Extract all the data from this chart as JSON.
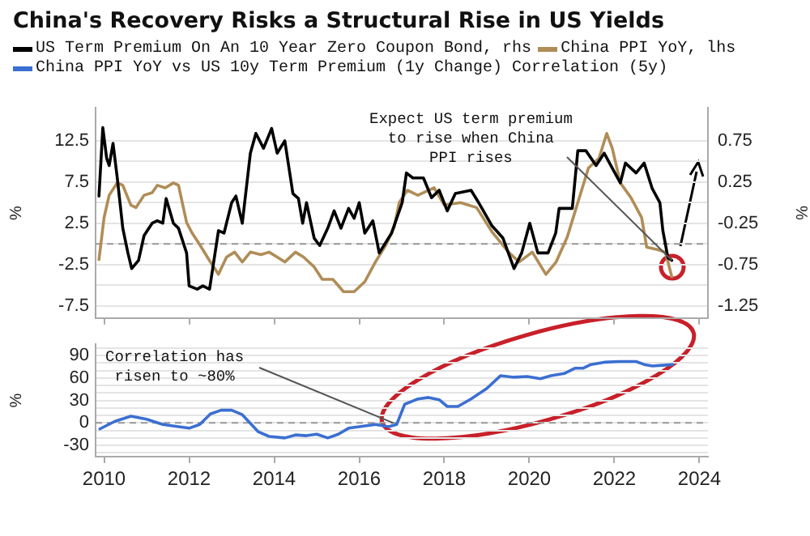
{
  "chart_data": [
    {
      "type": "line",
      "title": "China's Recovery Risks a Structural Rise in US Yields",
      "ylabel": "%",
      "y2label": "%",
      "xlim": [
        2009.8,
        2024.2
      ],
      "xticks": [
        2010,
        2012,
        2014,
        2016,
        2018,
        2020,
        2022,
        2024
      ],
      "ylim": [
        -9,
        16.5
      ],
      "yticks": [
        12.5,
        {
          "value": 10,
          "label": null
        },
        7.5,
        {
          "value": 5,
          "label": null
        },
        2.5,
        {
          "value": 0,
          "label": null
        },
        -2.5,
        {
          "value": -5,
          "label": null
        },
        -7.5
      ],
      "y2lim": [
        -1.4,
        1.15
      ],
      "y2ticks": [
        0.75,
        0.25,
        -0.25,
        -0.75,
        -1.25
      ],
      "tick_labels": "y",
      "grid": "y",
      "legend": "top left",
      "marker": "none",
      "ref_lines": [
        {
          "axis": "y",
          "value": 0,
          "line_style": "dashed",
          "color": "#999999"
        }
      ],
      "annotations": [
        {
          "text": "Expect US term premium\nto rise when China\nPPI rises",
          "x": 2023.35,
          "y": -2.0
        }
      ],
      "series": [
        {
          "name": "US Term Premium On An 10 Year Zero Coupon Bond, rhs",
          "color": "#000000",
          "axis": "y2",
          "x": [
            2009.88,
            2009.97,
            2010.06,
            2010.12,
            2010.21,
            2010.31,
            2010.44,
            2010.56,
            2010.65,
            2010.81,
            2010.94,
            2011.13,
            2011.25,
            2011.38,
            2011.46,
            2011.63,
            2011.75,
            2011.94,
            2012.0,
            2012.19,
            2012.32,
            2012.48,
            2012.69,
            2012.82,
            2013.0,
            2013.1,
            2013.25,
            2013.44,
            2013.57,
            2013.75,
            2013.94,
            2014.07,
            2014.25,
            2014.44,
            2014.57,
            2014.67,
            2014.76,
            2014.94,
            2015.07,
            2015.26,
            2015.41,
            2015.57,
            2015.75,
            2015.88,
            2016.0,
            2016.13,
            2016.32,
            2016.47,
            2016.76,
            2017.01,
            2017.11,
            2017.26,
            2017.51,
            2017.7,
            2017.88,
            2018.07,
            2018.26,
            2018.63,
            2018.82,
            2019.12,
            2019.38,
            2019.64,
            2019.82,
            2020.01,
            2020.2,
            2020.44,
            2020.62,
            2020.7,
            2021.01,
            2021.14,
            2021.33,
            2021.57,
            2021.76,
            2021.95,
            2022.14,
            2022.26,
            2022.51,
            2022.7,
            2022.89,
            2023.07,
            2023.14,
            2023.26,
            2023.35
          ],
          "values": [
            0.08,
            0.91,
            0.54,
            0.45,
            0.72,
            0.3,
            -0.31,
            -0.61,
            -0.8,
            -0.7,
            -0.4,
            -0.25,
            -0.22,
            -0.25,
            0.05,
            -0.25,
            -0.31,
            -0.61,
            -1.01,
            -1.05,
            -1.01,
            -1.05,
            -0.34,
            -0.37,
            0.0,
            0.08,
            -0.25,
            0.6,
            0.84,
            0.66,
            0.9,
            0.6,
            0.75,
            0.11,
            0.05,
            -0.25,
            0.0,
            -0.43,
            -0.52,
            -0.31,
            -0.1,
            -0.31,
            -0.07,
            -0.19,
            0.0,
            -0.37,
            -0.22,
            -0.61,
            -0.37,
            0.0,
            0.36,
            0.3,
            0.3,
            0.06,
            0.15,
            -0.1,
            0.11,
            0.15,
            -0.01,
            -0.28,
            -0.43,
            -0.8,
            -0.61,
            -0.25,
            -0.61,
            -0.61,
            -0.37,
            -0.07,
            -0.07,
            0.63,
            0.63,
            0.45,
            0.6,
            0.42,
            0.24,
            0.48,
            0.36,
            0.48,
            0.17,
            0.0,
            -0.34,
            -0.67,
            -0.7
          ]
        },
        {
          "name": "China PPI YoY, lhs",
          "color": "#b08d57",
          "axis": "y",
          "x": [
            2009.88,
            2010.0,
            2010.12,
            2010.31,
            2010.44,
            2010.63,
            2010.75,
            2010.94,
            2011.13,
            2011.25,
            2011.44,
            2011.63,
            2011.75,
            2011.94,
            2012.06,
            2012.25,
            2012.5,
            2012.69,
            2012.88,
            2013.07,
            2013.25,
            2013.44,
            2013.69,
            2013.88,
            2014.07,
            2014.25,
            2014.5,
            2014.69,
            2014.94,
            2015.13,
            2015.38,
            2015.63,
            2015.88,
            2016.13,
            2016.38,
            2016.63,
            2016.82,
            2016.94,
            2017.13,
            2017.38,
            2017.76,
            2018.0,
            2018.38,
            2018.76,
            2019.13,
            2019.51,
            2019.76,
            2020.07,
            2020.39,
            2020.63,
            2020.89,
            2021.14,
            2021.39,
            2021.64,
            2021.82,
            2021.95,
            2022.14,
            2022.39,
            2022.64,
            2022.76,
            2023.01,
            2023.2,
            2023.35
          ],
          "values": [
            -1.9,
            3.2,
            5.9,
            7.4,
            7.1,
            4.7,
            4.4,
            5.9,
            6.2,
            7.1,
            6.8,
            7.4,
            7.1,
            2.6,
            1.4,
            -0.1,
            -2.2,
            -3.7,
            -1.6,
            -1.0,
            -2.2,
            -1.0,
            -1.3,
            -1.0,
            -1.6,
            -2.2,
            -1.0,
            -1.6,
            -2.8,
            -4.3,
            -4.3,
            -5.8,
            -5.8,
            -4.6,
            -2.2,
            -0.1,
            2.0,
            5.0,
            6.5,
            5.9,
            6.8,
            4.7,
            5.0,
            4.4,
            1.4,
            -1.0,
            -2.2,
            -1.0,
            -3.7,
            -2.2,
            0.8,
            5.0,
            9.2,
            10.4,
            13.4,
            11.6,
            7.4,
            5.6,
            3.2,
            -0.4,
            -0.7,
            -1.0,
            -4.0
          ]
        }
      ]
    },
    {
      "type": "line",
      "ylabel": "%",
      "xlim": [
        2009.8,
        2024.2
      ],
      "xticks": [
        2010,
        2012,
        2014,
        2016,
        2018,
        2020,
        2022,
        2024
      ],
      "ylim": [
        -45,
        105
      ],
      "yticks": [
        {
          "value": -40,
          "label": null
        },
        -30,
        {
          "value": -20,
          "label": null
        },
        {
          "value": -10,
          "label": null
        },
        0,
        {
          "value": 10,
          "label": null
        },
        {
          "value": 20,
          "label": null
        },
        30,
        {
          "value": 40,
          "label": null
        },
        {
          "value": 50,
          "label": null
        },
        60,
        {
          "value": 70,
          "label": null
        },
        {
          "value": 80,
          "label": null
        },
        90,
        {
          "value": 100,
          "label": null
        }
      ],
      "grid": "y",
      "legend": "top left",
      "marker": "none",
      "ref_lines": [
        {
          "axis": "y",
          "value": 0,
          "line_style": "dashed",
          "color": "#999999"
        }
      ],
      "annotations": [
        {
          "text": "Correlation has\nrisen to ~80%",
          "x": 2016.8,
          "y": 0
        }
      ],
      "series": [
        {
          "name": "China PPI YoY vs US 10y Term Premium (1y Change) Correlation (5y)",
          "color": "#3b6fd1",
          "x": [
            2009.9,
            2010.25,
            2010.63,
            2011.0,
            2011.38,
            2011.75,
            2012.0,
            2012.25,
            2012.5,
            2012.75,
            2013.0,
            2013.25,
            2013.63,
            2013.88,
            2014.25,
            2014.5,
            2014.76,
            2015.0,
            2015.26,
            2015.51,
            2015.75,
            2016.0,
            2016.38,
            2016.69,
            2016.88,
            2017.07,
            2017.38,
            2017.63,
            2017.88,
            2018.07,
            2018.32,
            2018.63,
            2019.0,
            2019.32,
            2019.64,
            2019.95,
            2020.26,
            2020.51,
            2020.82,
            2021.07,
            2021.26,
            2021.45,
            2021.76,
            2022.14,
            2022.51,
            2022.7,
            2022.89,
            2023.14,
            2023.37
          ],
          "values": [
            -8,
            2,
            9,
            5,
            -2,
            -5,
            -7,
            -2,
            12,
            17,
            17,
            11,
            -12,
            -18,
            -20,
            -16,
            -17,
            -15,
            -20,
            -15,
            -7,
            -5,
            -2,
            -5,
            -2,
            25,
            32,
            34,
            31,
            22,
            22,
            32,
            46,
            63,
            61,
            62,
            59,
            63,
            66,
            73,
            73,
            78,
            81,
            82,
            82,
            78,
            76,
            77,
            78
          ]
        }
      ]
    }
  ]
}
